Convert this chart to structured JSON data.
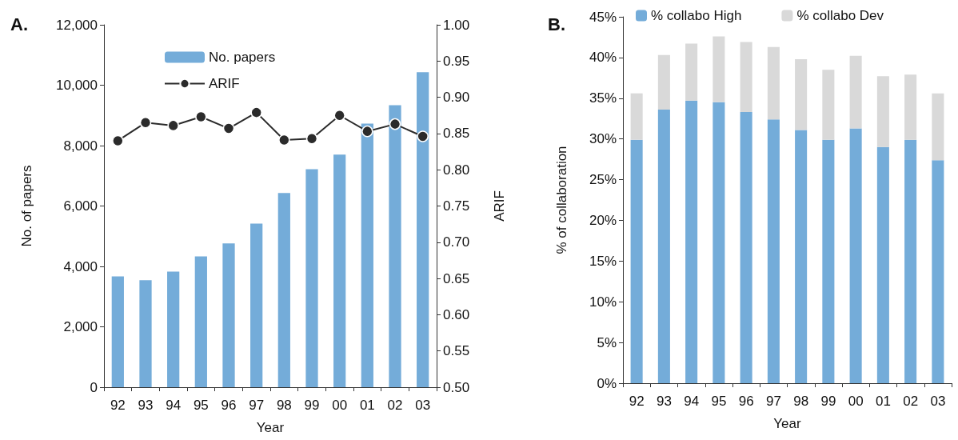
{
  "chart_data": [
    {
      "type": "bar",
      "title": "A.",
      "xlabel": "Year",
      "ylabel": "No. of papers",
      "y2label": "ARIF",
      "categories": [
        "92",
        "93",
        "94",
        "95",
        "96",
        "97",
        "98",
        "99",
        "00",
        "01",
        "02",
        "03"
      ],
      "series": [
        {
          "name": "No. papers",
          "color": "#74acd9",
          "values": [
            3670,
            3540,
            3830,
            4330,
            4760,
            5420,
            6430,
            7220,
            7700,
            8730,
            9340,
            10430
          ]
        },
        {
          "name": "ARIF",
          "type": "line",
          "axis": "y2",
          "color": "#2b2b2b",
          "values": [
            0.84,
            0.865,
            0.861,
            0.873,
            0.857,
            0.879,
            0.841,
            0.843,
            0.875,
            0.853,
            0.863,
            0.846
          ]
        }
      ],
      "ylim": [
        0,
        12000
      ],
      "yticks": [
        0,
        {
          "value": 2000,
          "label": "2,000"
        },
        {
          "value": 4000,
          "label": "4,000"
        },
        {
          "value": 6000,
          "label": "6,000"
        },
        {
          "value": 8000,
          "label": "8,000"
        },
        {
          "value": 10000,
          "label": "10,000"
        },
        {
          "value": 12000,
          "label": "12,000"
        }
      ],
      "y2lim": [
        0.5,
        1.0
      ],
      "y2ticks": [
        {
          "value": 0.5,
          "label": "0.50"
        },
        0.55,
        {
          "value": 0.6,
          "label": "0.60"
        },
        0.65,
        {
          "value": 0.7,
          "label": "0.70"
        },
        0.75,
        {
          "value": 0.8,
          "label": "0.80"
        },
        0.85,
        {
          "value": 0.9,
          "label": "0.90"
        },
        0.95,
        {
          "value": 1.0,
          "label": "1.00"
        }
      ],
      "marker": "circle",
      "legend": "top left"
    },
    {
      "type": "bar",
      "title": "B.",
      "xlabel": "Year",
      "ylabel": "% of collaboration",
      "stacked": true,
      "categories": [
        "92",
        "93",
        "94",
        "95",
        "96",
        "97",
        "98",
        "99",
        "00",
        "01",
        "02",
        "03"
      ],
      "series": [
        {
          "name": "% collabo High",
          "color": "#74acd9",
          "values": [
            29.9,
            33.6,
            34.7,
            34.5,
            33.3,
            32.4,
            31.1,
            29.9,
            31.3,
            29.0,
            29.9,
            27.4
          ]
        },
        {
          "name": "% collabo Dev",
          "color": "#d9d9d9",
          "values": [
            5.7,
            6.7,
            7.0,
            8.1,
            8.6,
            8.9,
            8.7,
            8.6,
            8.9,
            8.7,
            8.0,
            8.2
          ]
        }
      ],
      "ylim": [
        0,
        45
      ],
      "yticks": [
        {
          "value": 0,
          "label": "0%"
        },
        {
          "value": 5,
          "label": "5%"
        },
        {
          "value": 10,
          "label": "10%"
        },
        {
          "value": 15,
          "label": "15%"
        },
        {
          "value": 20,
          "label": "20%"
        },
        {
          "value": 25,
          "label": "25%"
        },
        {
          "value": 30,
          "label": "30%"
        },
        {
          "value": 35,
          "label": "35%"
        },
        {
          "value": 40,
          "label": "40%"
        },
        {
          "value": 45,
          "label": "45%"
        }
      ],
      "legend": "top"
    }
  ]
}
